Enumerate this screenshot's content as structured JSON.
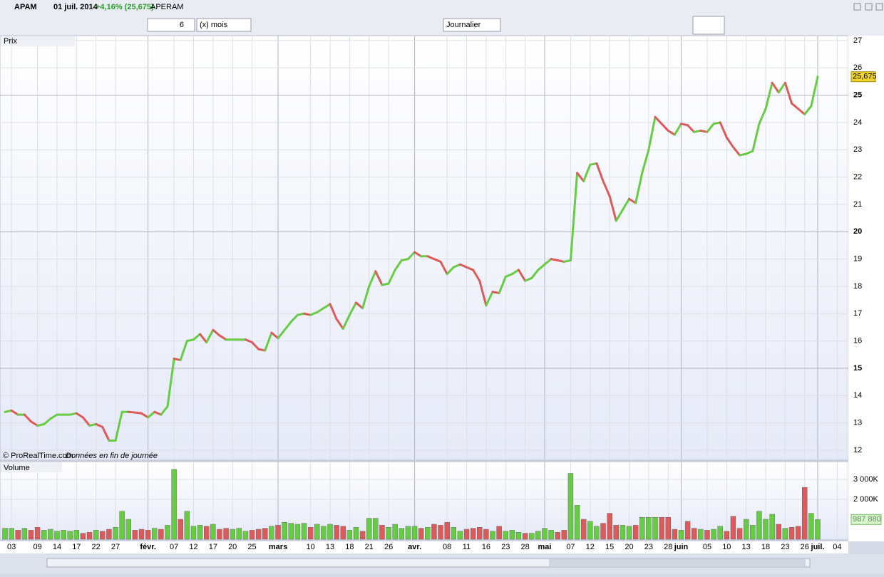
{
  "window": {
    "ticker": "APAM",
    "date": "01 juil. 2014",
    "change": "+4,16% (25,675)",
    "name": "APERAM"
  },
  "toolbar": {
    "period_count": "6",
    "period_unit": "(x) mois",
    "interval": "Journalier"
  },
  "panels": {
    "price_label": "Prix",
    "volume_label": "Volume",
    "copyright": "© ProRealTime.com",
    "data_note": "Données en fin de journée"
  },
  "chart_data": [
    {
      "type": "line",
      "up_color": "#66cc44",
      "down_color": "#dd5a5a",
      "ylim": [
        11.66,
        27.18
      ],
      "yticks": [
        12,
        13,
        14,
        15,
        16,
        17,
        18,
        19,
        20,
        21,
        22,
        23,
        24,
        25,
        26,
        27
      ],
      "last_value_label": "25,675",
      "values": [
        13.4,
        13.45,
        13.3,
        13.3,
        13.05,
        12.9,
        12.95,
        13.15,
        13.3,
        13.3,
        13.3,
        13.35,
        13.2,
        12.9,
        12.95,
        12.85,
        12.35,
        12.35,
        13.4,
        13.4,
        13.38,
        13.35,
        13.2,
        13.4,
        13.3,
        13.6,
        15.35,
        15.3,
        16.0,
        16.05,
        16.25,
        15.95,
        16.4,
        16.2,
        16.05,
        16.05,
        16.05,
        16.05,
        15.95,
        15.7,
        15.65,
        16.3,
        16.1,
        16.4,
        16.7,
        16.95,
        17.0,
        16.95,
        17.05,
        17.2,
        17.35,
        16.8,
        16.45,
        16.95,
        17.4,
        17.2,
        18.0,
        18.55,
        18.05,
        18.1,
        18.6,
        18.95,
        19.0,
        19.25,
        19.1,
        19.1,
        19.0,
        18.9,
        18.45,
        18.7,
        18.8,
        18.7,
        18.6,
        18.2,
        17.3,
        17.8,
        17.75,
        18.35,
        18.45,
        18.6,
        18.2,
        18.3,
        18.6,
        18.8,
        19.0,
        18.95,
        18.9,
        18.95,
        22.15,
        21.85,
        22.45,
        22.5,
        21.85,
        21.3,
        20.4,
        20.8,
        21.2,
        21.05,
        22.15,
        23.0,
        24.2,
        23.95,
        23.7,
        23.55,
        23.95,
        23.9,
        23.65,
        23.7,
        23.65,
        23.95,
        24.0,
        23.45,
        23.1,
        22.8,
        22.85,
        22.95,
        23.95,
        24.5,
        25.45,
        25.1,
        25.45,
        24.7,
        24.5,
        24.3,
        24.6,
        25.675
      ]
    },
    {
      "type": "bar",
      "ylim": [
        0,
        3890000
      ],
      "yticks": [
        {
          "value": 2000000,
          "label": "2 000K"
        },
        {
          "value": 3000000,
          "label": "3 000K"
        }
      ],
      "last_value_label": "987 880",
      "values": [
        550000,
        550000,
        450000,
        550000,
        450000,
        600000,
        450000,
        500000,
        400000,
        450000,
        400000,
        450000,
        300000,
        350000,
        450000,
        400000,
        500000,
        600000,
        1400000,
        1000000,
        450000,
        500000,
        450000,
        550000,
        500000,
        700000,
        3500000,
        1000000,
        1400000,
        650000,
        700000,
        650000,
        750000,
        500000,
        550000,
        500000,
        550000,
        400000,
        450000,
        500000,
        550000,
        650000,
        700000,
        850000,
        800000,
        750000,
        800000,
        600000,
        750000,
        650000,
        750000,
        700000,
        650000,
        450000,
        600000,
        400000,
        1050000,
        1050000,
        700000,
        600000,
        750000,
        550000,
        650000,
        650000,
        550000,
        600000,
        750000,
        700000,
        850000,
        600000,
        400000,
        500000,
        550000,
        600000,
        500000,
        400000,
        650000,
        400000,
        450000,
        350000,
        300000,
        300000,
        400000,
        550000,
        450000,
        350000,
        450000,
        3300000,
        1700000,
        1000000,
        900000,
        650000,
        800000,
        1300000,
        700000,
        700000,
        650000,
        700000,
        1100000,
        1100000,
        1100000,
        1100000,
        1100000,
        500000,
        450000,
        900000,
        550000,
        500000,
        450000,
        500000,
        650000,
        400000,
        1150000,
        550000,
        1000000,
        700000,
        1400000,
        1000000,
        1250000,
        750000,
        550000,
        600000,
        650000,
        2600000,
        1300000,
        987880
      ],
      "xticks": [
        {
          "value": 1,
          "label": "03"
        },
        {
          "value": 5,
          "label": "09"
        },
        {
          "value": 8,
          "label": "14"
        },
        {
          "value": 11,
          "label": "17"
        },
        {
          "value": 14,
          "label": "22"
        },
        {
          "value": 17,
          "label": "27"
        },
        {
          "value": 22,
          "label": "févr."
        },
        {
          "value": 26,
          "label": "07"
        },
        {
          "value": 29,
          "label": "12"
        },
        {
          "value": 32,
          "label": "17"
        },
        {
          "value": 35,
          "label": "20"
        },
        {
          "value": 38,
          "label": "25"
        },
        {
          "value": 42,
          "label": "mars"
        },
        {
          "value": 47,
          "label": "10"
        },
        {
          "value": 50,
          "label": "13"
        },
        {
          "value": 53,
          "label": "18"
        },
        {
          "value": 56,
          "label": "21"
        },
        {
          "value": 59,
          "label": "26"
        },
        {
          "value": 63,
          "label": "avr."
        },
        {
          "value": 68,
          "label": "08"
        },
        {
          "value": 71,
          "label": "11"
        },
        {
          "value": 74,
          "label": "16"
        },
        {
          "value": 77,
          "label": "23"
        },
        {
          "value": 80,
          "label": "28"
        },
        {
          "value": 83,
          "label": "mai"
        },
        {
          "value": 87,
          "label": "07"
        },
        {
          "value": 90,
          "label": "12"
        },
        {
          "value": 93,
          "label": "15"
        },
        {
          "value": 96,
          "label": "20"
        },
        {
          "value": 99,
          "label": "23"
        },
        {
          "value": 102,
          "label": "28"
        },
        {
          "value": 104,
          "label": "juin"
        },
        {
          "value": 108,
          "label": "05"
        },
        {
          "value": 111,
          "label": "10"
        },
        {
          "value": 114,
          "label": "13"
        },
        {
          "value": 117,
          "label": "18"
        },
        {
          "value": 120,
          "label": "23"
        },
        {
          "value": 123,
          "label": "26"
        },
        {
          "value": 125,
          "label": "juil."
        },
        {
          "value": 128,
          "label": "04"
        }
      ]
    }
  ]
}
